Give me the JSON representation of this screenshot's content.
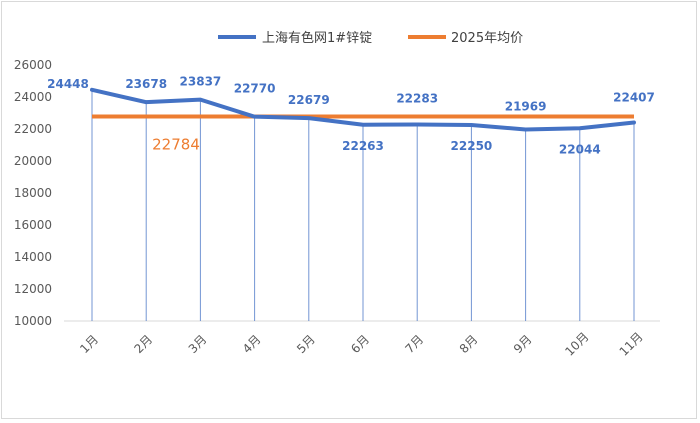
{
  "colors": {
    "series_main": "#4472C4",
    "series_avg": "#ED7D31",
    "grid": "#d9d9d9",
    "droplines": "#4472C4",
    "tick_text": "#595959",
    "avg_label": "#ED7D31"
  },
  "chart_data": {
    "type": "line",
    "categories": [
      "1月",
      "2月",
      "3月",
      "4月",
      "5月",
      "6月",
      "7月",
      "8月",
      "9月",
      "10月",
      "11月"
    ],
    "series": [
      {
        "name": "上海有色网1#锌锭",
        "values": [
          24448,
          23678,
          23837,
          22770,
          22679,
          22263,
          22283,
          22250,
          21969,
          22044,
          22407
        ],
        "color": "#4472C4",
        "data_labels": [
          "24448",
          "23678",
          "23837",
          "22770",
          "22679",
          "22263",
          "22283",
          "22250",
          "21969",
          "22044",
          "22407"
        ]
      },
      {
        "name": "2025年均价",
        "values": [
          22784,
          22784,
          22784,
          22784,
          22784,
          22784,
          22784,
          22784,
          22784,
          22784,
          22784
        ],
        "color": "#ED7D31",
        "label": "22784"
      }
    ],
    "ylim": [
      10000,
      26000
    ],
    "yticks": [
      "10000",
      "12000",
      "14000",
      "16000",
      "18000",
      "20000",
      "22000",
      "24000",
      "26000"
    ],
    "grid": false,
    "drop_lines": true,
    "legend_position": "top-center",
    "title": "",
    "xlabel": "",
    "ylabel": ""
  }
}
